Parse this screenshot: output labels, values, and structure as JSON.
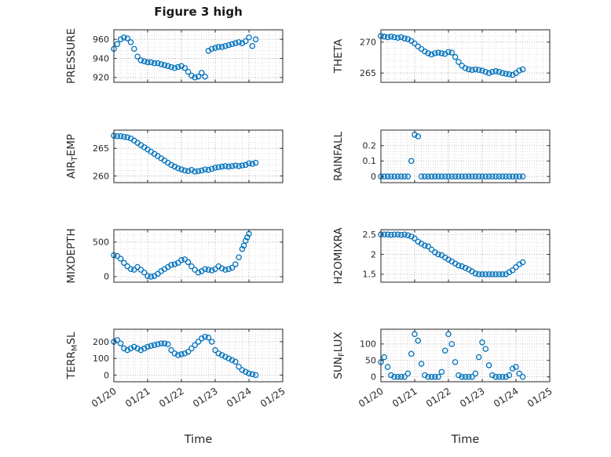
{
  "figure": {
    "title": "Figure 3 high",
    "xlabel": "Time"
  },
  "chart_data": {
    "type": "scatter",
    "marker": "o",
    "marker_color": "#0072BD",
    "axes_color": "#262626",
    "grid": "dotted major+minor, box on",
    "layout": "4 rows x 2 columns, x tick labels rotated on bottom row only",
    "x_axis": {
      "label": "Time",
      "lim": [
        0,
        5
      ],
      "ticks": [
        0,
        1,
        2,
        3,
        4,
        5
      ],
      "labels": [
        "01/20",
        "01/21",
        "01/22",
        "01/23",
        "01/24",
        "01/25"
      ]
    },
    "x": [
      0,
      0.1,
      0.2,
      0.3,
      0.4,
      0.5,
      0.6,
      0.7,
      0.8,
      0.9,
      1,
      1.1,
      1.2,
      1.3,
      1.4,
      1.5,
      1.6,
      1.7,
      1.8,
      1.9,
      2,
      2.1,
      2.2,
      2.3,
      2.4,
      2.5,
      2.6,
      2.7,
      2.8,
      2.9,
      3,
      3.1,
      3.2,
      3.3,
      3.4,
      3.5,
      3.6,
      3.7,
      3.8,
      3.9,
      4,
      4.1,
      4.2
    ],
    "subplots": [
      {
        "name": "PRESSURE",
        "ylabel": {
          "pre": "PRESSURE",
          "sub": "",
          "post": ""
        },
        "ylim": [
          915,
          970
        ],
        "yticks": [
          920,
          940,
          960
        ],
        "show_xticklabels": false,
        "y": [
          950,
          955,
          960,
          962,
          961,
          957,
          950,
          942,
          938,
          937,
          936,
          936,
          935,
          935,
          934,
          933,
          932,
          931,
          930,
          931,
          932,
          930,
          926,
          922,
          920,
          921,
          925,
          921,
          948,
          950,
          951,
          952,
          952,
          953,
          954,
          955,
          956,
          957,
          956,
          958,
          962,
          953,
          960
        ]
      },
      {
        "name": "THETA",
        "ylabel": {
          "pre": "THETA",
          "sub": "",
          "post": ""
        },
        "ylim": [
          263.5,
          272
        ],
        "yticks": [
          265,
          270
        ],
        "show_xticklabels": false,
        "y": [
          271,
          270.9,
          270.8,
          270.9,
          270.8,
          270.7,
          270.8,
          270.6,
          270.5,
          270.2,
          269.8,
          269.3,
          268.9,
          268.5,
          268.2,
          268,
          268.2,
          268.3,
          268.2,
          268.1,
          268.4,
          268.3,
          267.6,
          266.8,
          266.2,
          265.8,
          265.6,
          265.5,
          265.6,
          265.5,
          265.4,
          265.2,
          265,
          265.2,
          265.3,
          265.2,
          265,
          264.9,
          264.8,
          264.7,
          265,
          265.4,
          265.6
        ]
      },
      {
        "name": "AIR_TEMP",
        "ylabel": {
          "pre": "AIR",
          "sub": "T",
          "post": "EMP"
        },
        "ylim": [
          258.8,
          268.3
        ],
        "yticks": [
          260,
          265
        ],
        "show_xticklabels": false,
        "y": [
          267.3,
          267.2,
          267.2,
          267.1,
          267,
          266.8,
          266.4,
          266,
          265.6,
          265.2,
          264.8,
          264.4,
          264,
          263.6,
          263.2,
          262.8,
          262.4,
          262,
          261.7,
          261.4,
          261.2,
          261,
          260.9,
          261.1,
          260.8,
          260.9,
          261,
          261.2,
          261.1,
          261.3,
          261.5,
          261.6,
          261.7,
          261.8,
          261.7,
          261.8,
          261.9,
          261.8,
          261.9,
          262,
          262.3,
          262.2,
          262.4
        ]
      },
      {
        "name": "RAINFALL",
        "ylabel": {
          "pre": "RAINFALL",
          "sub": "",
          "post": ""
        },
        "ylim": [
          -0.04,
          0.3
        ],
        "yticks": [
          0,
          0.1,
          0.2
        ],
        "show_xticklabels": false,
        "y": [
          0,
          0,
          0,
          0,
          0,
          0,
          0,
          0,
          0,
          0.1,
          0.27,
          0.26,
          0,
          0,
          0,
          0,
          0,
          0,
          0,
          0,
          0,
          0,
          0,
          0,
          0,
          0,
          0,
          0,
          0,
          0,
          0,
          0,
          0,
          0,
          0,
          0,
          0,
          0,
          0,
          0,
          0,
          0,
          0
        ]
      },
      {
        "name": "MIXDEPTH",
        "ylabel": {
          "pre": "MIXDEPTH",
          "sub": "",
          "post": ""
        },
        "ylim": [
          -80,
          680
        ],
        "yticks": [
          0,
          500
        ],
        "show_xticklabels": false,
        "x": [
          0,
          0.1,
          0.2,
          0.3,
          0.4,
          0.5,
          0.6,
          0.7,
          0.8,
          0.9,
          1,
          1.1,
          1.2,
          1.3,
          1.4,
          1.5,
          1.6,
          1.7,
          1.8,
          1.9,
          2,
          2.1,
          2.2,
          2.3,
          2.4,
          2.5,
          2.6,
          2.7,
          2.8,
          2.9,
          3,
          3.1,
          3.2,
          3.3,
          3.4,
          3.5,
          3.6,
          3.7,
          3.8,
          3.85,
          3.9,
          3.95,
          4
        ],
        "y": [
          310,
          300,
          260,
          200,
          150,
          110,
          100,
          140,
          100,
          60,
          10,
          0,
          10,
          40,
          80,
          110,
          140,
          170,
          180,
          200,
          240,
          250,
          210,
          150,
          100,
          60,
          80,
          110,
          100,
          90,
          110,
          150,
          120,
          100,
          110,
          130,
          180,
          280,
          400,
          450,
          520,
          570,
          620
        ]
      },
      {
        "name": "H2OMIXRA",
        "ylabel": {
          "pre": "H2OMIXRA",
          "sub": "",
          "post": ""
        },
        "ylim": [
          1.3,
          2.62
        ],
        "yticks": [
          1.5,
          2,
          2.5
        ],
        "show_xticklabels": false,
        "y": [
          2.5,
          2.5,
          2.5,
          2.49,
          2.5,
          2.5,
          2.49,
          2.5,
          2.48,
          2.45,
          2.4,
          2.32,
          2.27,
          2.22,
          2.2,
          2.12,
          2.05,
          2,
          1.98,
          1.92,
          1.87,
          1.82,
          1.77,
          1.72,
          1.7,
          1.66,
          1.62,
          1.57,
          1.52,
          1.5,
          1.5,
          1.5,
          1.5,
          1.5,
          1.5,
          1.5,
          1.5,
          1.5,
          1.55,
          1.6,
          1.68,
          1.75,
          1.8
        ]
      },
      {
        "name": "TERR_MSL",
        "ylabel": {
          "pre": "TERR",
          "sub": "M",
          "post": "SL"
        },
        "ylim": [
          -40,
          275
        ],
        "yticks": [
          0,
          100,
          200
        ],
        "show_xticklabels": true,
        "y": [
          200,
          210,
          190,
          160,
          150,
          160,
          170,
          160,
          150,
          160,
          170,
          175,
          180,
          185,
          190,
          190,
          185,
          150,
          130,
          120,
          125,
          130,
          140,
          160,
          180,
          200,
          220,
          230,
          225,
          200,
          150,
          130,
          120,
          110,
          100,
          90,
          80,
          50,
          30,
          20,
          10,
          5,
          0
        ]
      },
      {
        "name": "SUN_FLUX",
        "ylabel": {
          "pre": "SUN",
          "sub": "F",
          "post": "LUX"
        },
        "ylim": [
          -15,
          145
        ],
        "yticks": [
          0,
          50,
          100
        ],
        "show_xticklabels": true,
        "y": [
          45,
          60,
          30,
          5,
          0,
          0,
          0,
          0,
          10,
          70,
          130,
          110,
          40,
          5,
          0,
          0,
          0,
          0,
          15,
          80,
          130,
          100,
          45,
          5,
          0,
          0,
          0,
          0,
          10,
          60,
          105,
          85,
          35,
          5,
          0,
          0,
          0,
          0,
          5,
          25,
          30,
          10,
          0
        ]
      }
    ]
  }
}
